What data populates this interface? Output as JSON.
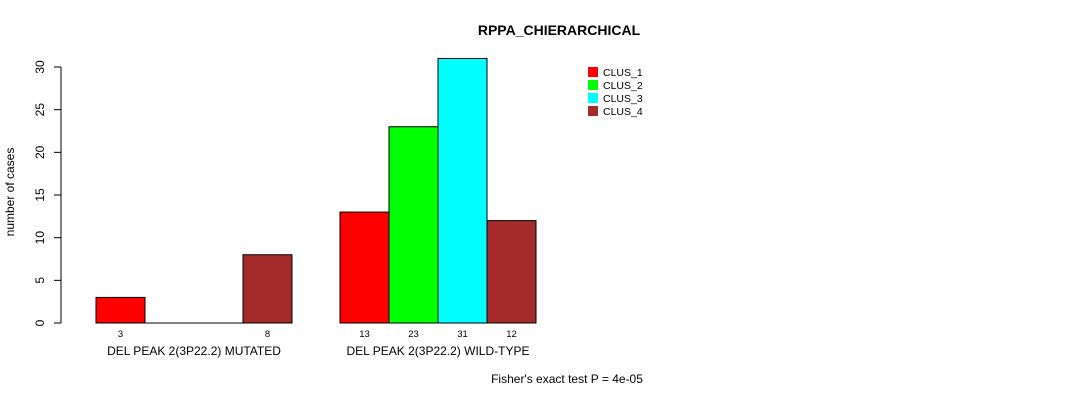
{
  "chart_data": {
    "type": "bar",
    "title": "RPPA_CHIERARCHICAL",
    "ylabel": "number of cases",
    "xlabel": "",
    "ylim": [
      0,
      30
    ],
    "yticks": [
      0,
      5,
      10,
      15,
      20,
      25,
      30
    ],
    "groups": [
      "DEL PEAK  2(3P22.2) MUTATED",
      "DEL PEAK  2(3P22.2) WILD-TYPE"
    ],
    "series": [
      {
        "name": "CLUS_1",
        "color": "#ff0000",
        "values": [
          3,
          13
        ]
      },
      {
        "name": "CLUS_2",
        "color": "#00ff00",
        "values": [
          0,
          23
        ]
      },
      {
        "name": "CLUS_3",
        "color": "#00ffff",
        "values": [
          0,
          31
        ]
      },
      {
        "name": "CLUS_4",
        "color": "#a52a2a",
        "values": [
          8,
          12
        ]
      }
    ],
    "value_labels": [
      [
        "3",
        "",
        "",
        "8"
      ],
      [
        "13",
        "23",
        "31",
        "12"
      ]
    ],
    "legend_position": "top-right",
    "annotation": "Fisher's exact test P = 4e-05"
  }
}
